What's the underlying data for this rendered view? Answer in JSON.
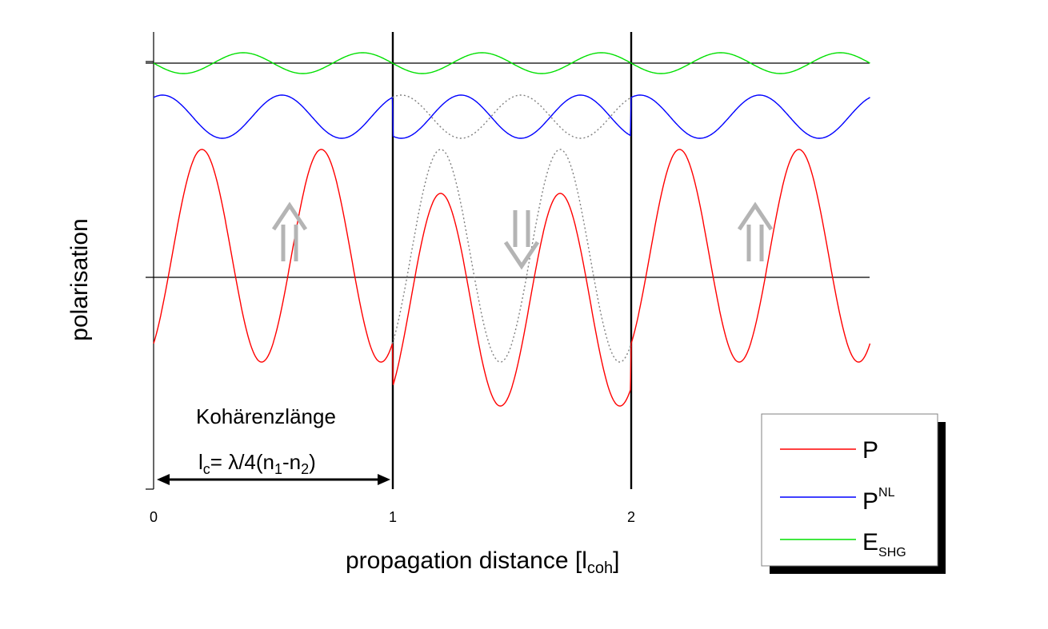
{
  "chart_data": {
    "type": "line",
    "xlabel": "propagation distance [l",
    "xlabel_sub": "coh",
    "xlabel_end": "]",
    "ylabel": "polarisation",
    "xlim": [
      0,
      3
    ],
    "x_ticks": [
      "0",
      "1",
      "2"
    ],
    "domain_boundaries": [
      1,
      2
    ],
    "grid": false,
    "legend_position": "bottom-right",
    "series": [
      {
        "name": "P",
        "color": "#ff0000",
        "description_points": {
          "x": [
            0.0,
            0.3,
            0.55,
            0.8,
            1.0,
            1.02,
            1.27,
            1.52,
            1.77,
            2.0,
            2.02,
            2.27,
            2.52,
            2.77,
            3.0
          ],
          "y": [
            -0.78,
            1.15,
            -0.78,
            1.15,
            -0.78,
            -1.05,
            0.7,
            -1.05,
            0.7,
            -1.05,
            -0.78,
            1.15,
            -0.78,
            1.15,
            -0.8
          ]
        }
      },
      {
        "name": "P",
        "sup": "NL",
        "color": "#0000ff"
      },
      {
        "name": "E",
        "sub": "SHG",
        "color": "#00e000"
      }
    ],
    "annotations": {
      "coherence_title": "Kohärenzlänge",
      "coherence_l": "l",
      "coherence_sub_c": "c",
      "coherence_eq": "= λ/4(n",
      "coherence_sub_1": "1",
      "coherence_dash": "-n",
      "coherence_sub_2": "2",
      "coherence_end": ")",
      "arrows": [
        "up",
        "down",
        "up"
      ]
    }
  }
}
